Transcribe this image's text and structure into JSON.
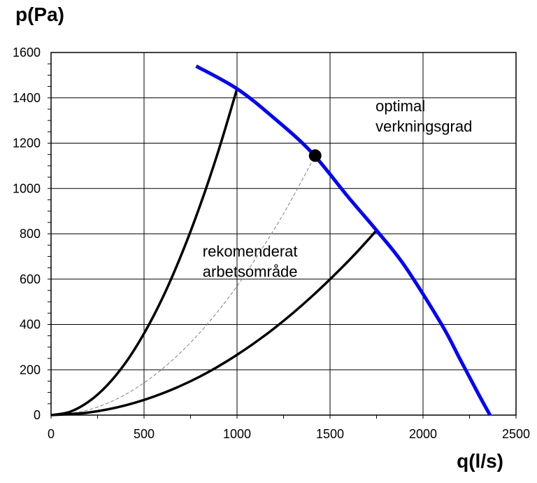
{
  "chart_data": {
    "type": "line",
    "title": "",
    "ylabel": "p(Pa)",
    "xlabel": "q(l/s)",
    "xlim": [
      0,
      2500
    ],
    "ylim": [
      0,
      1600
    ],
    "xticks": [
      0,
      500,
      1000,
      1500,
      2000,
      2500
    ],
    "yticks": [
      0,
      200,
      400,
      600,
      800,
      1000,
      1200,
      1400,
      1600
    ],
    "xtick_labels": [
      "0",
      "500",
      "1000",
      "1500",
      "2000",
      "2500"
    ],
    "ytick_labels": [
      "0",
      "200",
      "400",
      "600",
      "800",
      "1000",
      "1200",
      "1400",
      "1600"
    ],
    "grid": true,
    "colors": {
      "fan_curve": "#0000ff",
      "system_curve": "#000000",
      "optimal_curve": "#808080",
      "point": "#000000"
    },
    "series": [
      {
        "role": "fan_curve",
        "x": [
          780,
          1000,
          1200,
          1400,
          1600,
          1750,
          1900,
          2100,
          2200,
          2300,
          2360
        ],
        "y": [
          1540,
          1440,
          1310,
          1160,
          960,
          815,
          660,
          400,
          245,
          90,
          0
        ]
      },
      {
        "role": "system_curve_steep",
        "x": [
          0,
          100,
          200,
          300,
          400,
          500,
          600,
          700,
          800,
          900,
          1000
        ],
        "y": [
          0,
          14,
          58,
          130,
          230,
          360,
          518,
          706,
          922,
          1166,
          1440
        ]
      },
      {
        "role": "system_curve_shallow",
        "x": [
          0,
          200,
          400,
          600,
          800,
          1000,
          1200,
          1400,
          1600,
          1750
        ],
        "y": [
          0,
          11,
          43,
          96,
          170,
          266,
          383,
          522,
          681,
          815
        ]
      },
      {
        "role": "optimal_efficiency_curve",
        "x": [
          0,
          200,
          400,
          600,
          800,
          1000,
          1200,
          1300,
          1420
        ],
        "y": [
          0,
          23,
          91,
          205,
          364,
          569,
          820,
          962,
          1145
        ]
      }
    ],
    "points": [
      {
        "x": 1420,
        "y": 1145
      }
    ],
    "annotations": [
      {
        "lines": [
          "optimal",
          "verkningsgrad"
        ],
        "x": 1745,
        "y": 1340
      },
      {
        "lines": [
          "rekomenderat",
          "arbetsområde"
        ],
        "x": 815,
        "y": 700
      }
    ]
  }
}
